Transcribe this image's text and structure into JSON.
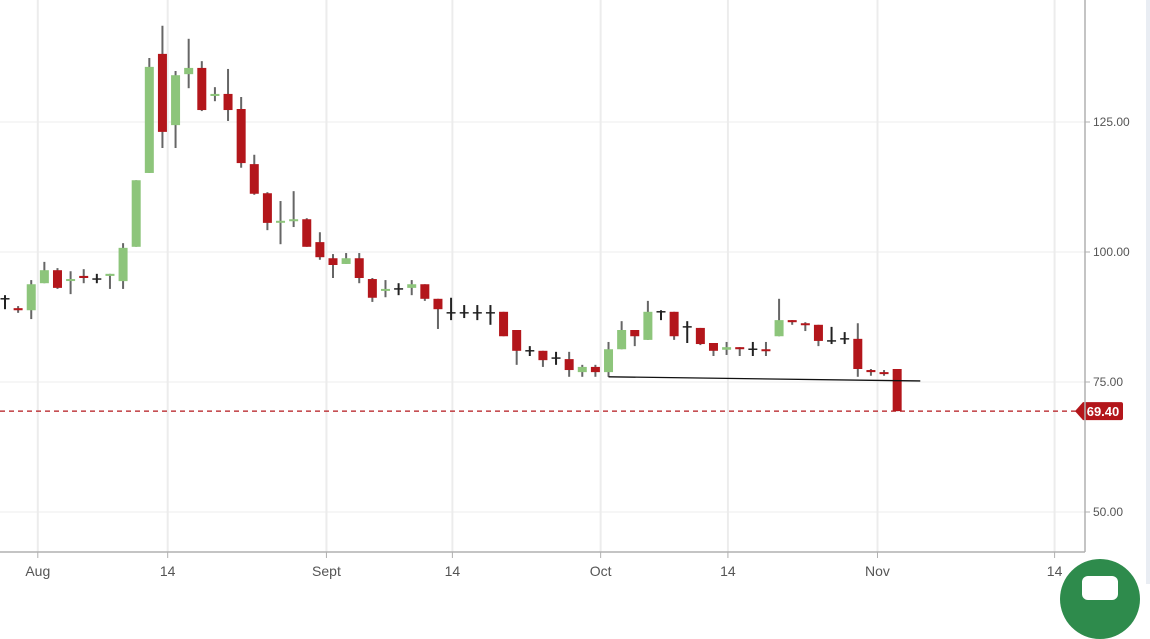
{
  "chart_data": {
    "type": "candlestick",
    "title": "",
    "xlabel": "",
    "ylabel": "",
    "ylim": [
      42.3,
      148.5
    ],
    "grid": true,
    "y_ticks": [
      {
        "value": 50,
        "label": "50.00"
      },
      {
        "value": 75,
        "label": "75.00"
      },
      {
        "value": 100,
        "label": "100.00"
      },
      {
        "value": 125,
        "label": "125.00"
      }
    ],
    "x_ticks": [
      {
        "label": "Aug",
        "index": 2.5
      },
      {
        "label": "14",
        "index": 12.4
      },
      {
        "label": "Sept",
        "index": 24.5
      },
      {
        "label": "14",
        "index": 34.1
      },
      {
        "label": "Oct",
        "index": 45.4
      },
      {
        "label": "14",
        "index": 55.1
      },
      {
        "label": "Nov",
        "index": 66.5
      },
      {
        "label": "14",
        "index": 80
      }
    ],
    "candle_fields": [
      "open",
      "high",
      "low",
      "close"
    ],
    "candles": [
      [
        91.0,
        91.7,
        89.0,
        91.0
      ],
      [
        89.2,
        89.6,
        88.3,
        88.8
      ],
      [
        88.8,
        94.6,
        87.1,
        93.8
      ],
      [
        94.0,
        98.1,
        94.0,
        96.5
      ],
      [
        96.5,
        96.9,
        92.9,
        93.1
      ],
      [
        94.6,
        96.3,
        91.9,
        94.8
      ],
      [
        95.4,
        96.7,
        94.0,
        95.0
      ],
      [
        94.8,
        95.8,
        94.0,
        94.8
      ],
      [
        95.4,
        95.8,
        92.9,
        95.8
      ],
      [
        94.4,
        101.7,
        92.9,
        100.8
      ],
      [
        101.0,
        113.8,
        101.0,
        113.8
      ],
      [
        115.2,
        137.3,
        115.2,
        135.6
      ],
      [
        138.1,
        143.5,
        120.0,
        123.1
      ],
      [
        124.4,
        134.8,
        120.0,
        134.0
      ],
      [
        134.2,
        141.0,
        131.5,
        135.4
      ],
      [
        135.4,
        136.7,
        127.1,
        127.3
      ],
      [
        130.0,
        131.7,
        129.0,
        130.4
      ],
      [
        130.4,
        135.2,
        125.2,
        127.3
      ],
      [
        127.5,
        129.8,
        116.2,
        117.1
      ],
      [
        116.9,
        118.7,
        111.0,
        111.2
      ],
      [
        111.3,
        111.5,
        104.2,
        105.6
      ],
      [
        105.8,
        109.8,
        101.5,
        106.0
      ],
      [
        106.2,
        111.7,
        104.8,
        106.3
      ],
      [
        106.3,
        106.5,
        101.0,
        101.0
      ],
      [
        101.9,
        103.8,
        98.5,
        99.0
      ],
      [
        98.8,
        99.6,
        95.0,
        97.5
      ],
      [
        97.7,
        99.8,
        97.7,
        98.8
      ],
      [
        98.8,
        99.8,
        94.0,
        95.0
      ],
      [
        94.8,
        95.0,
        90.4,
        91.2
      ],
      [
        92.7,
        94.6,
        91.3,
        92.9
      ],
      [
        92.9,
        94.0,
        91.7,
        92.9
      ],
      [
        93.1,
        94.6,
        91.7,
        93.8
      ],
      [
        93.8,
        93.8,
        90.6,
        91.0
      ],
      [
        91.0,
        91.0,
        85.2,
        89.0
      ],
      [
        88.3,
        91.2,
        86.9,
        88.3
      ],
      [
        88.3,
        89.8,
        87.3,
        88.3
      ],
      [
        88.3,
        89.8,
        86.9,
        88.3
      ],
      [
        88.3,
        89.8,
        86.0,
        88.3
      ],
      [
        88.5,
        88.5,
        83.8,
        83.8
      ],
      [
        85.0,
        85.0,
        78.3,
        81.0
      ],
      [
        81.0,
        81.9,
        80.0,
        81.0
      ],
      [
        81.0,
        81.0,
        77.9,
        79.2
      ],
      [
        79.6,
        80.8,
        78.3,
        79.6
      ],
      [
        79.4,
        80.8,
        76.0,
        77.3
      ],
      [
        76.9,
        78.3,
        76.0,
        77.9
      ],
      [
        77.9,
        78.3,
        76.0,
        76.9
      ],
      [
        76.9,
        82.7,
        76.0,
        81.3
      ],
      [
        81.3,
        86.7,
        81.3,
        85.0
      ],
      [
        85.0,
        85.0,
        81.9,
        83.8
      ],
      [
        83.1,
        90.6,
        83.1,
        88.5
      ],
      [
        88.5,
        88.8,
        86.9,
        88.5
      ],
      [
        88.5,
        88.5,
        83.1,
        83.8
      ],
      [
        85.6,
        86.7,
        82.5,
        85.6
      ],
      [
        85.4,
        85.4,
        82.1,
        82.3
      ],
      [
        82.5,
        82.5,
        80.0,
        81.0
      ],
      [
        81.2,
        82.7,
        80.2,
        81.7
      ],
      [
        81.7,
        81.7,
        80.0,
        81.3
      ],
      [
        81.3,
        82.7,
        80.0,
        81.3
      ],
      [
        81.3,
        82.7,
        80.0,
        81.0
      ],
      [
        83.8,
        91.0,
        83.8,
        86.9
      ],
      [
        86.9,
        86.9,
        86.0,
        86.5
      ],
      [
        86.3,
        86.5,
        84.8,
        86.2
      ],
      [
        86.0,
        86.0,
        81.9,
        82.9
      ],
      [
        82.9,
        85.6,
        82.3,
        82.9
      ],
      [
        83.3,
        84.6,
        82.3,
        83.3
      ],
      [
        83.3,
        86.3,
        76.0,
        77.5
      ],
      [
        77.3,
        77.5,
        76.2,
        76.9
      ],
      [
        76.9,
        77.3,
        76.2,
        76.7
      ],
      [
        77.5,
        77.5,
        69.4,
        69.4
      ]
    ],
    "trendline": {
      "start": {
        "index": 46,
        "value": 76.0
      },
      "end": {
        "index": 69,
        "value": 75.2
      }
    },
    "last_price": {
      "value": 69.4,
      "label": "69.40"
    },
    "colors": {
      "up": "#8dc57b",
      "down": "#b3161b",
      "wick": "#666666",
      "doji": "#222222",
      "last_price": "#b3161b",
      "grid": "#ececec",
      "axis": "#b0b0b0"
    }
  },
  "chat_button": {
    "icon": "chat-icon",
    "color": "#2e8b4c"
  }
}
